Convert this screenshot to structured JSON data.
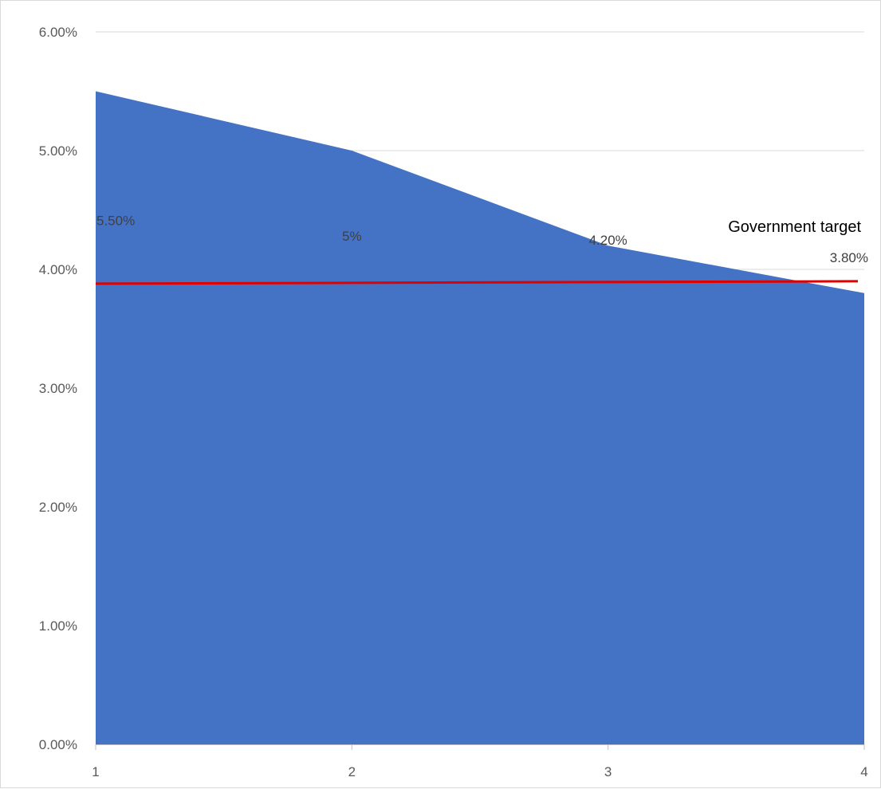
{
  "chart_data": {
    "type": "area",
    "categories": [
      "1",
      "2",
      "3",
      "4"
    ],
    "series": [
      {
        "values": [
          0.055,
          0.05,
          0.042,
          0.038
        ],
        "data_labels": [
          "5.50%",
          "5%",
          "4.20%",
          "3.80%"
        ]
      }
    ],
    "reference_line": {
      "label": "Government target",
      "start": 0.0388,
      "end": 0.039
    },
    "ylim": [
      0,
      0.06
    ],
    "yticks": [
      "0.00%",
      "1.00%",
      "2.00%",
      "3.00%",
      "4.00%",
      "5.00%",
      "6.00%"
    ],
    "xticks": [
      "1",
      "2",
      "3",
      "4"
    ],
    "grid": true,
    "legend": "none",
    "colors": {
      "area": "#4472C4",
      "reference": "#E00000",
      "grid": "#D9D9D9",
      "axis": "#BFBFBF"
    }
  }
}
